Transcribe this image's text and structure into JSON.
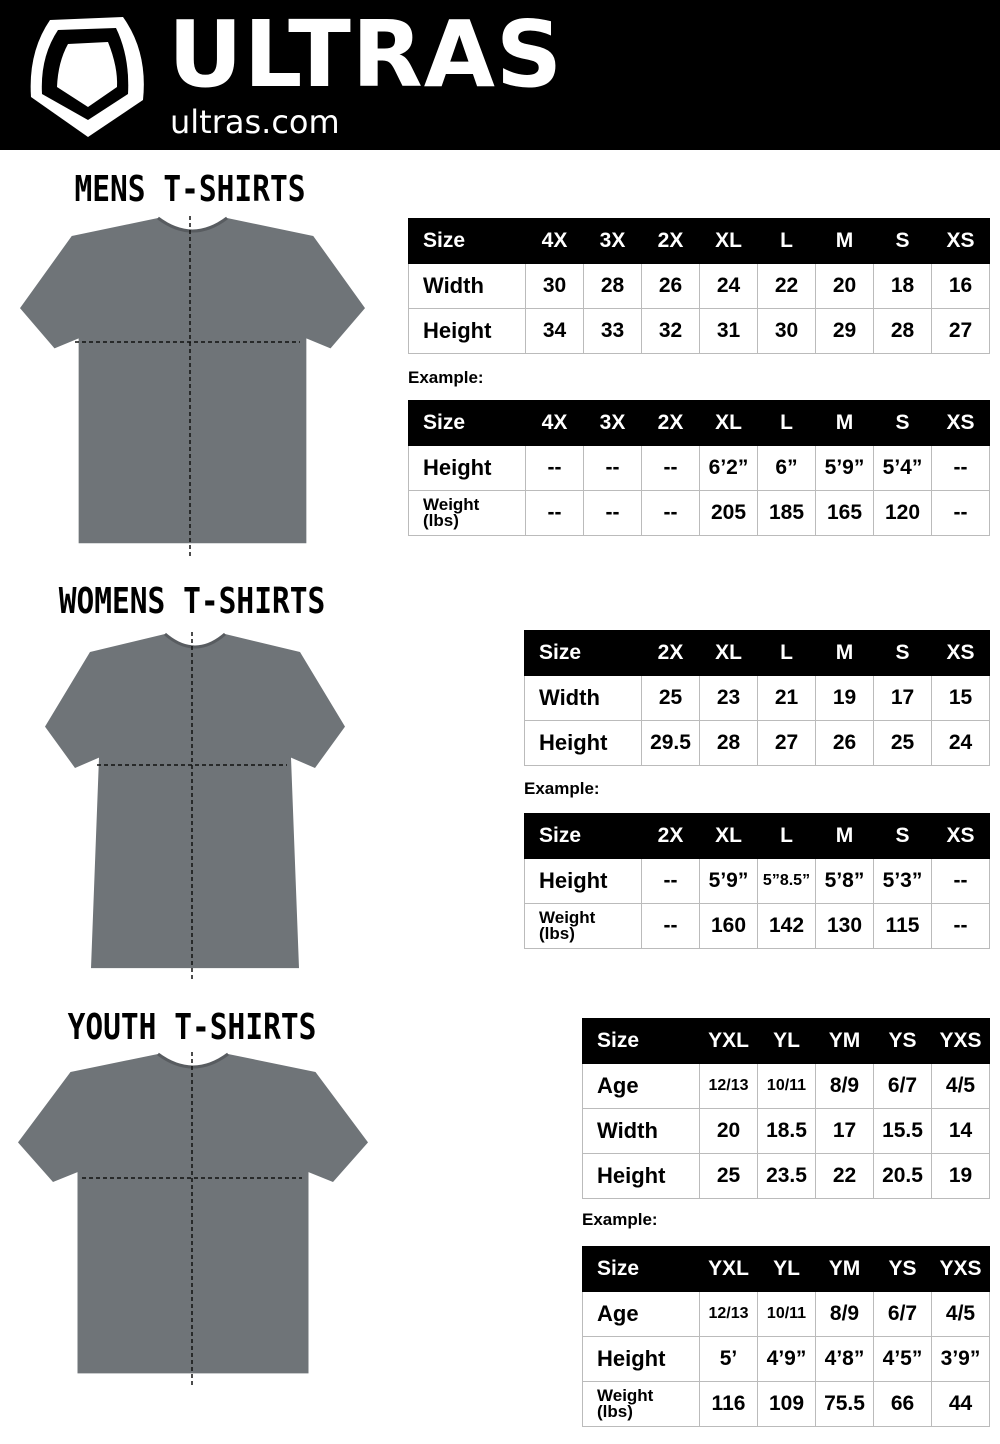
{
  "brand": {
    "name": "ULTRAS",
    "site": "ultras.com"
  },
  "sections": [
    {
      "title": "MENS T-SHIRTS",
      "size_table": {
        "headers": [
          "Size",
          "4X",
          "3X",
          "2X",
          "XL",
          "L",
          "M",
          "S",
          "XS"
        ],
        "rows": [
          {
            "label": "Width",
            "values": [
              "30",
              "28",
              "26",
              "24",
              "22",
              "20",
              "18",
              "16"
            ]
          },
          {
            "label": "Height",
            "values": [
              "34",
              "33",
              "32",
              "31",
              "30",
              "29",
              "28",
              "27"
            ]
          }
        ]
      },
      "example_label": "Example:",
      "example_table": {
        "headers": [
          "Size",
          "4X",
          "3X",
          "2X",
          "XL",
          "L",
          "M",
          "S",
          "XS"
        ],
        "rows": [
          {
            "label": "Height",
            "values": [
              "--",
              "--",
              "--",
              "6’2”",
              "6”",
              "5’9”",
              "5’4”",
              "--"
            ]
          },
          {
            "label": "Weight (lbs)",
            "values": [
              "--",
              "--",
              "--",
              "205",
              "185",
              "165",
              "120",
              "--"
            ]
          }
        ]
      }
    },
    {
      "title": "WOMENS T-SHIRTS",
      "size_table": {
        "headers": [
          "Size",
          "2X",
          "XL",
          "L",
          "M",
          "S",
          "XS"
        ],
        "rows": [
          {
            "label": "Width",
            "values": [
              "25",
              "23",
              "21",
              "19",
              "17",
              "15"
            ]
          },
          {
            "label": "Height",
            "values": [
              "29.5",
              "28",
              "27",
              "26",
              "25",
              "24"
            ]
          }
        ]
      },
      "example_label": "Example:",
      "example_table": {
        "headers": [
          "Size",
          "2X",
          "XL",
          "L",
          "M",
          "S",
          "XS"
        ],
        "rows": [
          {
            "label": "Height",
            "values": [
              "--",
              "5’9”",
              "5”8.5”",
              "5’8”",
              "5’3”",
              "--"
            ]
          },
          {
            "label": "Weight (lbs)",
            "values": [
              "--",
              "160",
              "142",
              "130",
              "115",
              "--"
            ]
          }
        ]
      }
    },
    {
      "title": "YOUTH T-SHIRTS",
      "size_table": {
        "headers": [
          "Size",
          "YXL",
          "YL",
          "YM",
          "YS",
          "YXS"
        ],
        "rows": [
          {
            "label": "Age",
            "values": [
              "12/13",
              "10/11",
              "8/9",
              "6/7",
              "4/5"
            ]
          },
          {
            "label": "Width",
            "values": [
              "20",
              "18.5",
              "17",
              "15.5",
              "14"
            ]
          },
          {
            "label": "Height",
            "values": [
              "25",
              "23.5",
              "22",
              "20.5",
              "19"
            ]
          }
        ]
      },
      "example_label": "Example:",
      "example_table": {
        "headers": [
          "Size",
          "YXL",
          "YL",
          "YM",
          "YS",
          "YXS"
        ],
        "rows": [
          {
            "label": "Age",
            "values": [
              "12/13",
              "10/11",
              "8/9",
              "6/7",
              "4/5"
            ]
          },
          {
            "label": "Height",
            "values": [
              "5’",
              "4’9”",
              "4’8”",
              "4’5”",
              "3’9”"
            ]
          },
          {
            "label": "Weight (lbs)",
            "values": [
              "116",
              "109",
              "75.5",
              "66",
              "44"
            ]
          }
        ]
      }
    }
  ],
  "colors": {
    "header_bg": "#000000",
    "shirt": "#6f7478"
  }
}
